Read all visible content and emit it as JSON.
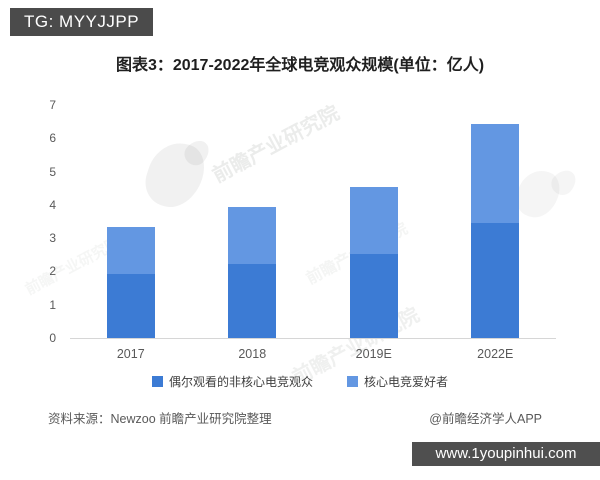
{
  "overlays": {
    "tg_badge": "TG: MYYJJPP",
    "url_badge": "www.1youpinhui.com"
  },
  "chart": {
    "title": "图表3：2017-2022年全球电竞观众规模(单位：亿人)",
    "source_note": "资料来源：Newzoo 前瞻产业研究院整理",
    "credit": "@前瞻经济学人APP"
  },
  "watermark": {
    "text": "前瞻产业研究院"
  },
  "chart_data": {
    "type": "bar",
    "stacked": true,
    "title": "图表3：2017-2022年全球电竞观众规模(单位：亿人)",
    "unit": "亿人",
    "categories": [
      "2017",
      "2018",
      "2019E",
      "2022E"
    ],
    "series": [
      {
        "name": "偶尔观看的非核心电竞观众",
        "color": "#3c7bd4",
        "values": [
          1.92,
          2.22,
          2.53,
          3.47
        ]
      },
      {
        "name": "核心电竞爱好者",
        "color": "#6397e2",
        "values": [
          1.43,
          1.73,
          2.01,
          2.97
        ]
      }
    ],
    "totals": [
      3.35,
      3.95,
      4.54,
      6.44
    ],
    "xlabel": "",
    "ylabel": "",
    "ylim": [
      0,
      7
    ],
    "yticks": [
      0,
      1,
      2,
      3,
      4,
      5,
      6,
      7
    ],
    "grid": false,
    "legend_position": "bottom",
    "baseline_color": "#d6d6d6",
    "tick_color": "#595959"
  }
}
